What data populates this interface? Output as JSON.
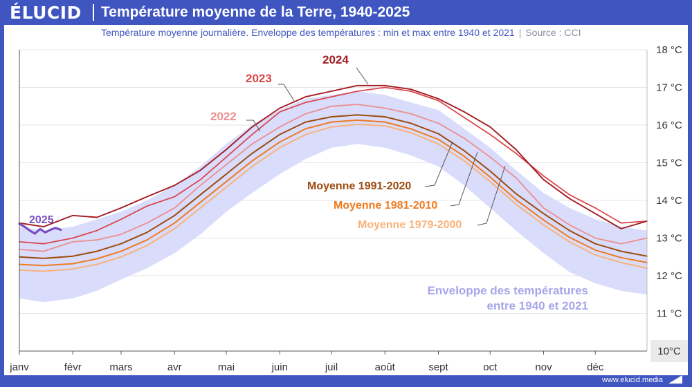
{
  "header": {
    "logo": "ÉLUCID",
    "title": "Température moyenne de la Terre, 1940-2025"
  },
  "subtitle": {
    "text": "Température moyenne journalière. Enveloppe des températures : min et max entre 1940 et 2021",
    "source": "Source : CCI"
  },
  "footer": {
    "url": "www.elucid.media"
  },
  "colors": {
    "brand": "#3f55c0",
    "envelope": "#d9dcfa",
    "y2025": "#7a4fc2",
    "y2024": "#a31b21",
    "y2023": "#d9484d",
    "y2022": "#ec8e8e",
    "m1991": "#9c4a0d",
    "m1981": "#ef7a1f",
    "m1979": "#f8b27a",
    "envelope_label": "#a8a6ea"
  },
  "chart_data": {
    "type": "line",
    "xlabel": "",
    "ylabel": "",
    "x_unit": "day of year",
    "xlim": [
      1,
      365
    ],
    "ylim": [
      10,
      18
    ],
    "y_ticks": [
      {
        "value": 10,
        "label": "10°C"
      },
      {
        "value": 11,
        "label": "11 °C"
      },
      {
        "value": 12,
        "label": "12 °C"
      },
      {
        "value": 13,
        "label": "13 °C"
      },
      {
        "value": 14,
        "label": "14 °C"
      },
      {
        "value": 15,
        "label": "15 °C"
      },
      {
        "value": 16,
        "label": "16 °C"
      },
      {
        "value": 17,
        "label": "17 °C"
      },
      {
        "value": 18,
        "label": "18 °C"
      }
    ],
    "x_ticks": [
      {
        "day": 1,
        "label": "janv"
      },
      {
        "day": 32,
        "label": "févr"
      },
      {
        "day": 60,
        "label": "mars"
      },
      {
        "day": 91,
        "label": "avr"
      },
      {
        "day": 121,
        "label": "mai"
      },
      {
        "day": 152,
        "label": "juin"
      },
      {
        "day": 182,
        "label": "juil"
      },
      {
        "day": 213,
        "label": "août"
      },
      {
        "day": 244,
        "label": "sept"
      },
      {
        "day": 274,
        "label": "oct"
      },
      {
        "day": 305,
        "label": "nov"
      },
      {
        "day": 335,
        "label": "déc"
      }
    ],
    "grid": true,
    "envelope": {
      "label_lines": [
        "Enveloppe des températures",
        "entre 1940 et 2021"
      ],
      "x": [
        1,
        15,
        32,
        46,
        60,
        75,
        91,
        106,
        121,
        136,
        152,
        167,
        182,
        197,
        213,
        228,
        244,
        259,
        274,
        289,
        305,
        320,
        335,
        350,
        365
      ],
      "min": [
        11.4,
        11.3,
        11.4,
        11.6,
        11.9,
        12.2,
        12.6,
        13.1,
        13.7,
        14.2,
        14.7,
        15.1,
        15.4,
        15.5,
        15.4,
        15.2,
        14.9,
        14.4,
        13.8,
        13.2,
        12.6,
        12.1,
        11.8,
        11.6,
        11.5
      ],
      "max": [
        13.3,
        13.2,
        13.3,
        13.5,
        13.7,
        14.0,
        14.4,
        14.9,
        15.5,
        16.0,
        16.4,
        16.7,
        16.8,
        16.9,
        16.8,
        16.6,
        16.4,
        15.9,
        15.4,
        14.8,
        14.2,
        13.8,
        13.5,
        13.3,
        13.2
      ]
    },
    "series": [
      {
        "name": "Moyenne 1979-2000",
        "x": [
          1,
          15,
          32,
          46,
          60,
          75,
          91,
          106,
          121,
          136,
          152,
          167,
          182,
          197,
          213,
          228,
          244,
          259,
          274,
          289,
          305,
          320,
          335,
          350,
          365
        ],
        "values": [
          12.15,
          12.12,
          12.18,
          12.3,
          12.5,
          12.8,
          13.25,
          13.8,
          14.35,
          14.9,
          15.4,
          15.75,
          15.95,
          16.02,
          15.98,
          15.8,
          15.5,
          15.05,
          14.5,
          13.9,
          13.35,
          12.9,
          12.55,
          12.35,
          12.2
        ]
      },
      {
        "name": "Moyenne 1981-2010",
        "x": [
          1,
          15,
          32,
          46,
          60,
          75,
          91,
          106,
          121,
          136,
          152,
          167,
          182,
          197,
          213,
          228,
          244,
          259,
          274,
          289,
          305,
          320,
          335,
          350,
          365
        ],
        "values": [
          12.3,
          12.27,
          12.32,
          12.45,
          12.65,
          12.95,
          13.4,
          13.95,
          14.5,
          15.05,
          15.55,
          15.9,
          16.08,
          16.13,
          16.08,
          15.9,
          15.62,
          15.17,
          14.62,
          14.02,
          13.48,
          13.02,
          12.68,
          12.48,
          12.35
        ]
      },
      {
        "name": "Moyenne 1991-2020",
        "x": [
          1,
          15,
          32,
          46,
          60,
          75,
          91,
          106,
          121,
          136,
          152,
          167,
          182,
          197,
          213,
          228,
          244,
          259,
          274,
          289,
          305,
          320,
          335,
          350,
          365
        ],
        "values": [
          12.5,
          12.46,
          12.52,
          12.65,
          12.85,
          13.15,
          13.6,
          14.15,
          14.7,
          15.25,
          15.75,
          16.08,
          16.22,
          16.27,
          16.22,
          16.05,
          15.77,
          15.32,
          14.78,
          14.18,
          13.65,
          13.2,
          12.85,
          12.65,
          12.52
        ]
      },
      {
        "name": "2022",
        "x": [
          1,
          15,
          32,
          46,
          60,
          75,
          91,
          106,
          121,
          136,
          152,
          167,
          182,
          197,
          213,
          228,
          244,
          259,
          274,
          289,
          305,
          320,
          335,
          350,
          365
        ],
        "values": [
          12.7,
          12.65,
          12.9,
          12.95,
          13.1,
          13.4,
          13.8,
          14.4,
          14.95,
          15.5,
          15.95,
          16.3,
          16.5,
          16.55,
          16.45,
          16.3,
          16.05,
          15.65,
          15.15,
          14.6,
          13.8,
          13.35,
          13.0,
          12.85,
          13.0
        ]
      },
      {
        "name": "2023",
        "x": [
          1,
          15,
          32,
          46,
          60,
          75,
          91,
          106,
          121,
          136,
          152,
          167,
          182,
          197,
          213,
          228,
          244,
          259,
          274,
          289,
          305,
          320,
          335,
          350,
          365
        ],
        "values": [
          12.9,
          12.85,
          13.0,
          13.2,
          13.5,
          13.85,
          14.1,
          14.55,
          15.15,
          15.75,
          16.35,
          16.6,
          16.75,
          16.9,
          17.0,
          16.9,
          16.65,
          16.2,
          15.75,
          15.25,
          14.65,
          14.15,
          13.8,
          13.4,
          13.45
        ]
      },
      {
        "name": "2024",
        "x": [
          1,
          15,
          32,
          46,
          60,
          75,
          91,
          106,
          121,
          136,
          152,
          167,
          182,
          197,
          213,
          228,
          244,
          259,
          274,
          289,
          305,
          320,
          335,
          350,
          365
        ],
        "values": [
          13.4,
          13.3,
          13.6,
          13.55,
          13.8,
          14.1,
          14.4,
          14.8,
          15.35,
          15.95,
          16.45,
          16.75,
          16.9,
          17.05,
          17.05,
          16.95,
          16.7,
          16.35,
          15.95,
          15.35,
          14.55,
          14.05,
          13.65,
          13.25,
          13.45
        ]
      },
      {
        "name": "2025",
        "x": [
          1,
          4,
          7,
          10,
          13,
          16,
          19,
          22,
          25
        ],
        "values": [
          13.38,
          13.3,
          13.2,
          13.12,
          13.24,
          13.15,
          13.22,
          13.27,
          13.22
        ]
      }
    ]
  }
}
